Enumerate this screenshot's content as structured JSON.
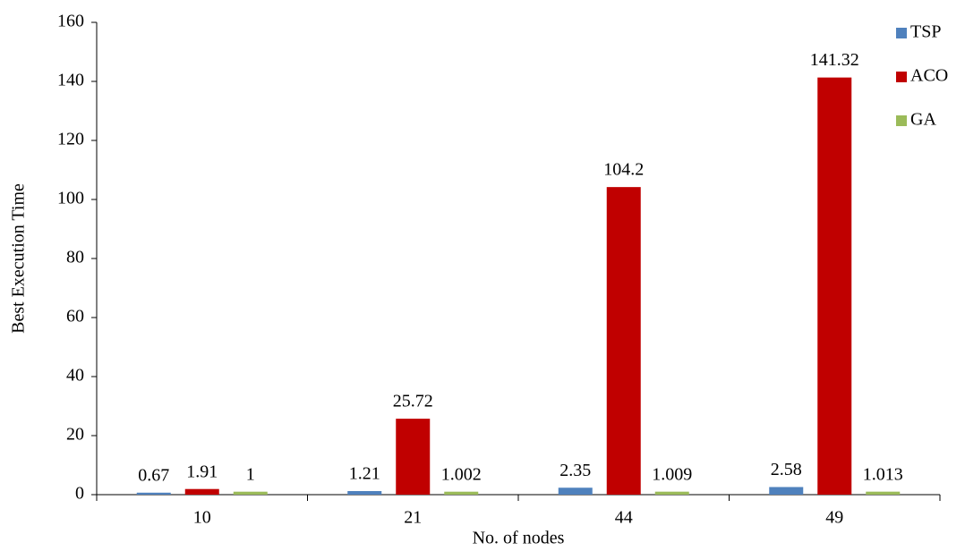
{
  "chart_data": {
    "type": "bar",
    "x_label": "No. of nodes",
    "y_label": "Best Execution Time",
    "categories": [
      "10",
      "21",
      "44",
      "49"
    ],
    "series": [
      {
        "name": "TSP",
        "color": "#4f81bd",
        "values": [
          0.67,
          1.21,
          2.35,
          2.58
        ]
      },
      {
        "name": "ACO",
        "color": "#c00000",
        "values": [
          1.91,
          25.72,
          104.2,
          141.32
        ]
      },
      {
        "name": "GA",
        "color": "#9bbb59",
        "values": [
          1,
          1.002,
          1.009,
          1.013
        ]
      }
    ],
    "ylim": [
      0,
      160
    ],
    "yticks": [
      0,
      20,
      40,
      60,
      80,
      100,
      120,
      140,
      160
    ],
    "grid": false,
    "legend": "upper right"
  }
}
